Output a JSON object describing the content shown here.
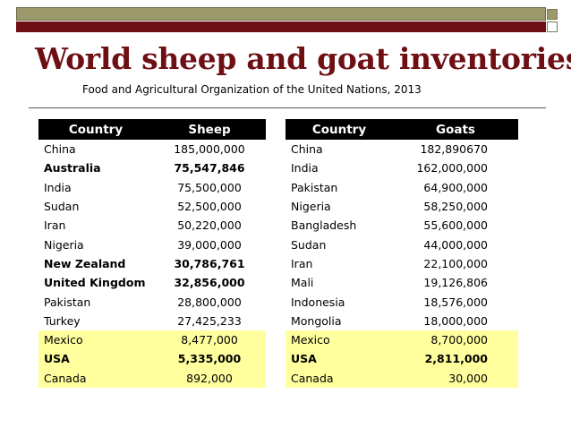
{
  "title": "World sheep and goat inventories",
  "subtitle": "Food and Agricultural Organization of the United Nations, 2013",
  "sheep_table": {
    "headers": [
      "Country",
      "Sheep"
    ],
    "rows": [
      {
        "country": "China",
        "value": "185,000,000",
        "bold": false,
        "highlight": false
      },
      {
        "country": "Australia",
        "value": "75,547,846",
        "bold": true,
        "highlight": false
      },
      {
        "country": "India",
        "value": "75,500,000",
        "bold": false,
        "highlight": false
      },
      {
        "country": "Sudan",
        "value": "52,500,000",
        "bold": false,
        "highlight": false
      },
      {
        "country": "Iran",
        "value": "50,220,000",
        "bold": false,
        "highlight": false
      },
      {
        "country": "Nigeria",
        "value": "39,000,000",
        "bold": false,
        "highlight": false
      },
      {
        "country": "New Zealand",
        "value": "30,786,761",
        "bold": true,
        "highlight": false
      },
      {
        "country": "United Kingdom",
        "value": "32,856,000",
        "bold": true,
        "highlight": false
      },
      {
        "country": "Pakistan",
        "value": "28,800,000",
        "bold": false,
        "highlight": false
      },
      {
        "country": "Turkey",
        "value": "27,425,233",
        "bold": false,
        "highlight": false
      },
      {
        "country": "Mexico",
        "value": "8,477,000",
        "bold": false,
        "highlight": true
      },
      {
        "country": "USA",
        "value": "5,335,000",
        "bold": true,
        "highlight": true
      },
      {
        "country": "Canada",
        "value": "892,000",
        "bold": false,
        "highlight": true
      }
    ]
  },
  "goat_table": {
    "headers": [
      "Country",
      "Goats"
    ],
    "rows": [
      {
        "country": "China",
        "value": "182,890670",
        "bold": false,
        "highlight": false
      },
      {
        "country": "India",
        "value": "162,000,000",
        "bold": false,
        "highlight": false
      },
      {
        "country": "Pakistan",
        "value": "64,900,000",
        "bold": false,
        "highlight": false
      },
      {
        "country": "Nigeria",
        "value": "58,250,000",
        "bold": false,
        "highlight": false
      },
      {
        "country": "Bangladesh",
        "value": "55,600,000",
        "bold": false,
        "highlight": false
      },
      {
        "country": "Sudan",
        "value": "44,000,000",
        "bold": false,
        "highlight": false
      },
      {
        "country": "Iran",
        "value": "22,100,000",
        "bold": false,
        "highlight": false
      },
      {
        "country": "Mali",
        "value": "19,126,806",
        "bold": false,
        "highlight": false
      },
      {
        "country": "Indonesia",
        "value": "18,576,000",
        "bold": false,
        "highlight": false
      },
      {
        "country": "Mongolia",
        "value": "18,000,000",
        "bold": false,
        "highlight": false
      },
      {
        "country": "Mexico",
        "value": "8,700,000",
        "bold": false,
        "highlight": true
      },
      {
        "country": "USA",
        "value": "2,811,000",
        "bold": true,
        "highlight": true
      },
      {
        "country": "Canada",
        "value": "30,000",
        "bold": false,
        "highlight": true
      }
    ]
  },
  "colors": {
    "title": "#6e0f14",
    "top_bar": "#9c9a6a",
    "accent_bar": "#6e0f14",
    "header_bg": "#000000",
    "highlight": "#ffff9e"
  }
}
